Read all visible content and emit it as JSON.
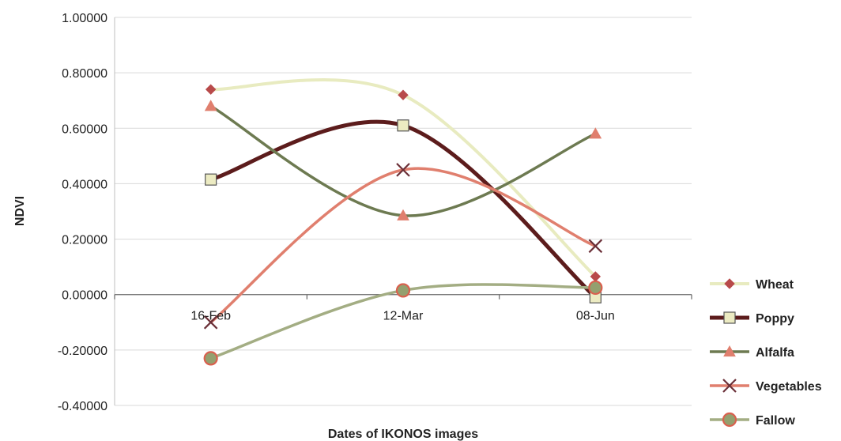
{
  "chart_data": {
    "type": "line",
    "smooth": true,
    "xlabel": "Dates of IKONOS images",
    "ylabel": "NDVI",
    "categories": [
      "16-Feb",
      "12-Mar",
      "08-Jun"
    ],
    "ylim": [
      -0.4,
      1.0
    ],
    "ytick_values": [
      -0.4,
      -0.2,
      0.0,
      0.2,
      0.4,
      0.6,
      0.8,
      1.0
    ],
    "ytick_labels": [
      "-0.40000",
      "-0.20000",
      "0.00000",
      "0.20000",
      "0.40000",
      "0.60000",
      "0.80000",
      "1.00000"
    ],
    "grid": true,
    "legend_position": "right",
    "series": [
      {
        "name": "Wheat",
        "values": [
          0.74,
          0.72,
          0.065
        ],
        "line_color": "#e8ebc0",
        "marker": "diamond",
        "marker_color": "#b84a4a"
      },
      {
        "name": "Poppy",
        "values": [
          0.415,
          0.61,
          -0.01
        ],
        "line_color": "#5c1c1c",
        "marker": "square",
        "marker_color": "#ecebc2"
      },
      {
        "name": "Alfalfa",
        "values": [
          0.68,
          0.285,
          0.58
        ],
        "line_color": "#6d7a51",
        "marker": "triangle",
        "marker_color": "#e07f6e"
      },
      {
        "name": "Vegetables",
        "values": [
          -0.1,
          0.45,
          0.175
        ],
        "line_color": "#e07f6e",
        "marker": "x",
        "marker_color": "#6b3038"
      },
      {
        "name": "Fallow",
        "values": [
          -0.23,
          0.015,
          0.025
        ],
        "line_color": "#a3ad83",
        "marker": "circle",
        "marker_color": "#94a06f"
      }
    ]
  }
}
